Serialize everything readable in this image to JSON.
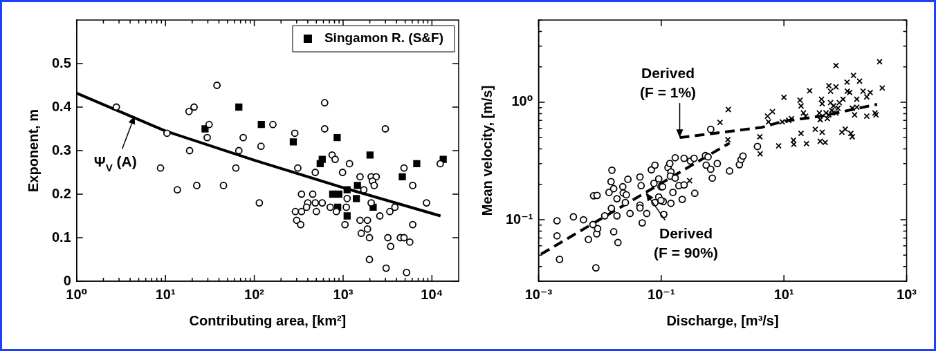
{
  "chart_data": [
    {
      "type": "scatter",
      "xlabel": "Contributing area, [km²]",
      "ylabel": "Exponent, m",
      "log": "x",
      "grid": false,
      "legend": "top right",
      "xlim": [
        1,
        20000
      ],
      "ylim": [
        0,
        0.6
      ],
      "xticks": [
        {
          "value": 1,
          "label": "10⁰"
        },
        {
          "value": 2,
          "label": null
        },
        {
          "value": 3,
          "label": null
        },
        {
          "value": 4,
          "label": null
        },
        {
          "value": 5,
          "label": null
        },
        {
          "value": 6,
          "label": null
        },
        {
          "value": 7,
          "label": null
        },
        {
          "value": 8,
          "label": null
        },
        {
          "value": 9,
          "label": null
        },
        {
          "value": 10,
          "label": "10¹"
        },
        {
          "value": 20,
          "label": null
        },
        {
          "value": 30,
          "label": null
        },
        {
          "value": 40,
          "label": null
        },
        {
          "value": 50,
          "label": null
        },
        {
          "value": 60,
          "label": null
        },
        {
          "value": 70,
          "label": null
        },
        {
          "value": 80,
          "label": null
        },
        {
          "value": 90,
          "label": null
        },
        {
          "value": 100,
          "label": "10²"
        },
        {
          "value": 200,
          "label": null
        },
        {
          "value": 300,
          "label": null
        },
        {
          "value": 400,
          "label": null
        },
        {
          "value": 500,
          "label": null
        },
        {
          "value": 600,
          "label": null
        },
        {
          "value": 700,
          "label": null
        },
        {
          "value": 800,
          "label": null
        },
        {
          "value": 900,
          "label": null
        },
        {
          "value": 1000,
          "label": "10³"
        },
        {
          "value": 2000,
          "label": null
        },
        {
          "value": 3000,
          "label": null
        },
        {
          "value": 4000,
          "label": null
        },
        {
          "value": 5000,
          "label": null
        },
        {
          "value": 6000,
          "label": null
        },
        {
          "value": 7000,
          "label": null
        },
        {
          "value": 8000,
          "label": null
        },
        {
          "value": 9000,
          "label": null
        },
        {
          "value": 10000,
          "label": "10⁴"
        }
      ],
      "yticks": [
        0,
        0.1,
        0.2,
        0.3,
        0.4,
        0.5
      ],
      "annotations": [
        {
          "text": "Ψ$_{V}$ (A)",
          "x": 4.5,
          "y": 0.38
        }
      ],
      "series": [
        {
          "type": "scatter",
          "marker": "circle",
          "color": "#000000",
          "x": [
            2.8,
            10.4,
            8.8,
            13.6,
            18.7,
            18.4,
            21,
            22.5,
            31,
            29.5,
            38,
            45,
            67,
            62,
            75,
            119,
            114,
            162,
            286,
            309,
            620,
            620,
            486,
            752,
            813,
            986,
            1180,
            1550,
            2070,
            2360,
            2140,
            2240,
            2990,
            4850,
            6080,
            8690,
            12400,
            340,
            290,
            340,
            300,
            333,
            400,
            388,
            455,
            486,
            500,
            582,
            716,
            840,
            1050,
            1086,
            1110,
            1710,
            2070,
            1550,
            1600,
            1880,
            1880,
            1980,
            2590,
            3360,
            3830,
            6080,
            3190,
            3430,
            4410,
            4850,
            5630,
            1980,
            3050,
            5180
          ],
          "values": [
            0.4,
            0.34,
            0.26,
            0.21,
            0.3,
            0.39,
            0.4,
            0.22,
            0.36,
            0.33,
            0.45,
            0.22,
            0.3,
            0.26,
            0.33,
            0.31,
            0.18,
            0.36,
            0.34,
            0.26,
            0.41,
            0.35,
            0.25,
            0.29,
            0.28,
            0.25,
            0.27,
            0.24,
            0.24,
            0.24,
            0.23,
            0.22,
            0.35,
            0.26,
            0.22,
            0.18,
            0.27,
            0.2,
            0.16,
            0.16,
            0.14,
            0.13,
            0.18,
            0.17,
            0.2,
            0.18,
            0.16,
            0.18,
            0.17,
            0.16,
            0.13,
            0.17,
            0.19,
            0.21,
            0.18,
            0.14,
            0.11,
            0.14,
            0.12,
            0.1,
            0.15,
            0.16,
            0.17,
            0.13,
            0.1,
            0.08,
            0.1,
            0.1,
            0.09,
            0.05,
            0.03,
            0.02
          ]
        },
        {
          "type": "scatter",
          "name": "Singamon R. (S&F)",
          "marker": "square",
          "color": "#000000",
          "x": [
            27.9,
            67,
            120,
            275,
            857,
            582,
            552,
            2010,
            6750,
            13400,
            4640,
            1450,
            1110,
            763,
            895,
            1410,
            870,
            1110,
            2180
          ],
          "values": [
            0.35,
            0.4,
            0.36,
            0.32,
            0.33,
            0.28,
            0.27,
            0.29,
            0.27,
            0.28,
            0.24,
            0.22,
            0.21,
            0.2,
            0.2,
            0.19,
            0.17,
            0.15,
            0.17
          ]
        },
        {
          "type": "line",
          "line_style": "solid",
          "color": "#000000",
          "x": [
            1,
            10,
            100,
            1000,
            12500
          ],
          "values": [
            0.432,
            0.345,
            0.278,
            0.215,
            0.15
          ]
        }
      ]
    },
    {
      "type": "scatter",
      "xlabel": "Discharge, [m³/s]",
      "ylabel": "Mean velocity, [m/s]",
      "log": "xy",
      "grid": false,
      "xlim": [
        0.001,
        1000
      ],
      "ylim": [
        0.03,
        5
      ],
      "xticks": [
        {
          "value": 0.001,
          "label": "10⁻³"
        },
        {
          "value": 0.1,
          "label": "10⁻¹"
        },
        {
          "value": 10,
          "label": "10¹"
        },
        {
          "value": 1000,
          "label": "10³"
        }
      ],
      "yticks": [
        {
          "value": 0.03,
          "label": null
        },
        {
          "value": 0.04,
          "label": null
        },
        {
          "value": 0.05,
          "label": null
        },
        {
          "value": 0.06,
          "label": null
        },
        {
          "value": 0.07,
          "label": null
        },
        {
          "value": 0.08,
          "label": null
        },
        {
          "value": 0.09,
          "label": null
        },
        {
          "value": 0.1,
          "label": "10⁻¹"
        },
        {
          "value": 0.2,
          "label": null
        },
        {
          "value": 0.3,
          "label": null
        },
        {
          "value": 0.4,
          "label": null
        },
        {
          "value": 0.5,
          "label": null
        },
        {
          "value": 0.6,
          "label": null
        },
        {
          "value": 0.7,
          "label": null
        },
        {
          "value": 0.8,
          "label": null
        },
        {
          "value": 0.9,
          "label": null
        },
        {
          "value": 1,
          "label": "10⁰"
        },
        {
          "value": 2,
          "label": null
        },
        {
          "value": 3,
          "label": null
        },
        {
          "value": 4,
          "label": null
        },
        {
          "value": 5,
          "label": null
        }
      ],
      "annotations": [
        {
          "text": "Derived\n(F = 1%)",
          "x": 0.2,
          "y": 0.5
        },
        {
          "text": "Derived\n(F = 90%)",
          "x": 0.056,
          "y": 0.17
        }
      ],
      "series": [
        {
          "type": "scatter",
          "marker": "circle",
          "color": "#000000",
          "x": [
            0.002,
            0.002,
            0.0022,
            0.0037,
            0.0054,
            0.0065,
            0.0077,
            0.0089,
            0.0092,
            0.0086,
            0.0079,
            0.009,
            0.012,
            0.0154,
            0.0152,
            0.0157,
            0.0141,
            0.0168,
            0.0168,
            0.019,
            0.0197,
            0.019,
            0.0236,
            0.024,
            0.027,
            0.0286,
            0.031,
            0.026,
            0.045,
            0.047,
            0.045,
            0.045,
            0.049,
            0.058,
            0.069,
            0.079,
            0.079,
            0.076,
            0.091,
            0.099,
            0.105,
            0.091,
            0.108,
            0.11,
            0.099,
            0.129,
            0.138,
            0.144,
            0.141,
            0.169,
            0.169,
            0.155,
            0.144,
            0.194,
            0.22,
            0.236,
            0.236,
            0.3,
            0.343,
            0.352,
            0.525,
            0.58,
            0.54,
            0.64,
            0.68,
            0.82,
            1.3,
            0.64,
            1.88,
            2.0,
            2.15,
            3.7
          ],
          "values": [
            0.098,
            0.073,
            0.046,
            0.106,
            0.1,
            0.068,
            0.091,
            0.076,
            0.084,
            0.039,
            0.16,
            0.161,
            0.108,
            0.125,
            0.211,
            0.264,
            0.171,
            0.184,
            0.079,
            0.108,
            0.064,
            0.151,
            0.191,
            0.169,
            0.163,
            0.221,
            0.113,
            0.14,
            0.231,
            0.195,
            0.133,
            0.126,
            0.094,
            0.113,
            0.266,
            0.291,
            0.14,
            0.204,
            0.223,
            0.191,
            0.191,
            0.156,
            0.143,
            0.111,
            0.146,
            0.278,
            0.301,
            0.255,
            0.235,
            0.337,
            0.226,
            0.171,
            0.138,
            0.195,
            0.149,
            0.333,
            0.198,
            0.316,
            0.333,
            0.168,
            0.351,
            0.343,
            0.291,
            0.269,
            0.226,
            0.301,
            0.26,
            0.588,
            0.294,
            0.325,
            0.348,
            0.42
          ]
        },
        {
          "type": "scatter",
          "marker": "cross",
          "color": "#000000",
          "x": [
            1.24,
            0.91,
            1.22,
            0.29,
            4.05,
            4.1,
            5.4,
            6.5,
            5.6,
            8.2,
            10,
            9.4,
            12,
            14.3,
            14.5,
            13.3,
            18.3,
            19,
            19,
            23.3,
            20.8,
            22.6,
            26.3,
            32.4,
            37.8,
            39,
            41,
            42,
            42,
            39,
            47,
            48.6,
            51,
            54,
            70.5,
            57.6,
            70.5,
            57.6,
            64,
            54,
            60,
            70.5,
            80,
            76,
            92,
            107,
            136,
            171,
            108,
            118,
            130,
            142,
            154,
            195,
            255,
            224,
            224,
            305,
            317,
            363,
            400,
            88,
            100,
            123,
            130,
            154
          ],
          "values": [
            0.867,
            0.673,
            0.48,
            0.215,
            0.508,
            0.364,
            0.76,
            0.83,
            0.68,
            0.425,
            1.1,
            0.68,
            0.7,
            0.475,
            0.438,
            0.725,
            1.04,
            0.93,
            0.543,
            0.444,
            0.81,
            0.76,
            1.25,
            0.588,
            0.81,
            0.71,
            1.06,
            0.97,
            0.555,
            0.465,
            0.455,
            0.81,
            0.725,
            1.38,
            2.05,
            1.24,
            1.35,
            0.99,
            0.93,
            0.78,
            0.85,
            0.81,
            0.99,
            0.89,
            1.06,
            1.48,
            1.69,
            1.51,
            1.24,
            1.21,
            0.89,
            0.78,
            1.06,
            1.24,
            1.21,
            1.11,
            0.76,
            0.81,
            0.78,
            2.21,
            1.32,
            0.555,
            0.59,
            0.543,
            0.508,
            0.907
          ]
        },
        {
          "type": "line",
          "line_style": "dashed",
          "color": "#000000",
          "x": [
            0.0011,
            1.3
          ],
          "values": [
            0.051,
            0.45
          ]
        },
        {
          "type": "line",
          "line_style": "dashed",
          "color": "#000000",
          "x": [
            0.2,
            4.3,
            10,
            40,
            330
          ],
          "values": [
            0.5,
            0.61,
            0.69,
            0.76,
            0.96
          ]
        }
      ]
    }
  ]
}
